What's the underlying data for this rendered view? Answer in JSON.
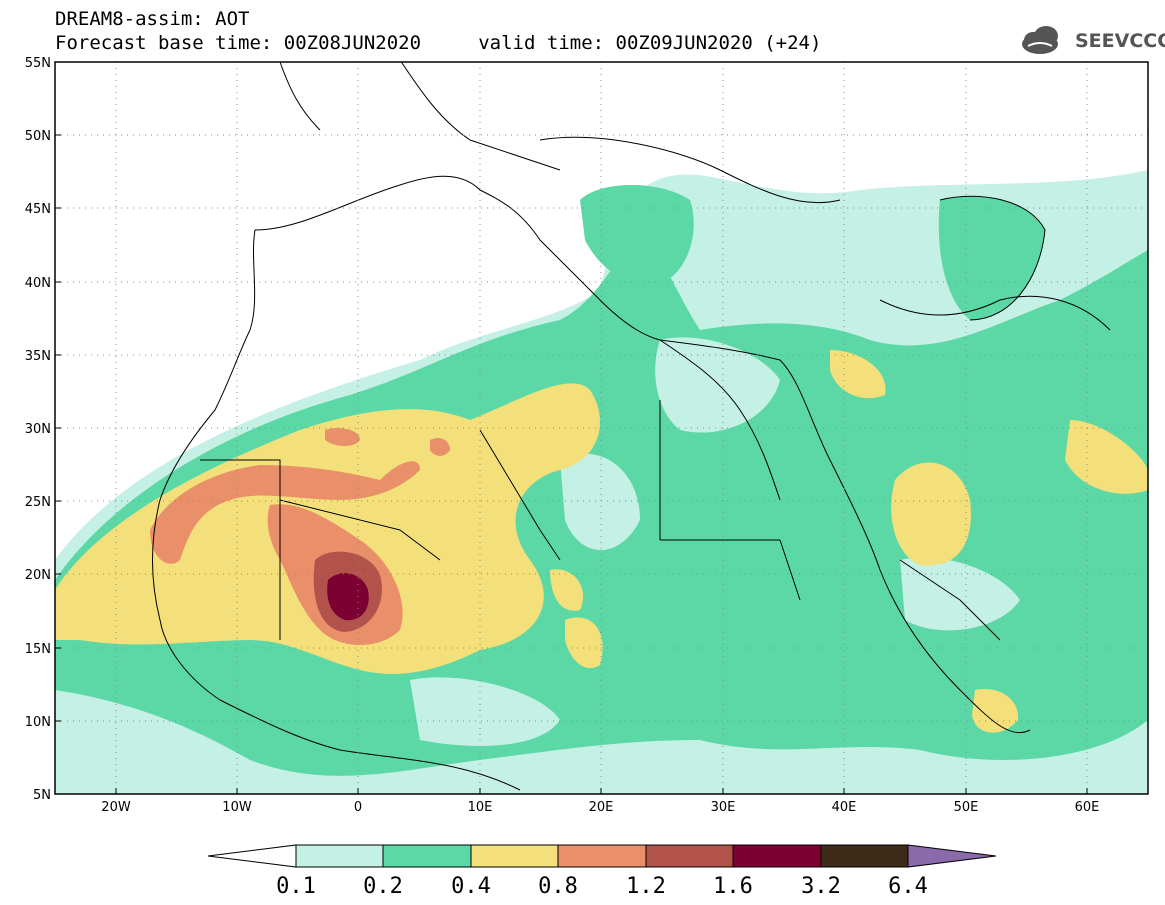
{
  "header": {
    "line1": "DREAM8-assim: AOT",
    "line2": "Forecast base time: 00Z08JUN2020     valid time: 00Z09JUN2020 (+24)"
  },
  "logo": {
    "text": "SEEVCCC",
    "icon": "cloud-icon"
  },
  "map": {
    "lat_labels": [
      "55N",
      "50N",
      "45N",
      "40N",
      "35N",
      "30N",
      "25N",
      "20N",
      "15N",
      "10N",
      "5N"
    ],
    "lon_labels": [
      "20W",
      "10W",
      "0",
      "10E",
      "20E",
      "30E",
      "40E",
      "50E",
      "60E"
    ],
    "lat_range": [
      5,
      55
    ],
    "lon_range": [
      -25,
      65
    ],
    "gridlines": "dotted"
  },
  "colorbar": {
    "labels": [
      "0.1",
      "0.2",
      "0.4",
      "0.8",
      "1.2",
      "1.6",
      "3.2",
      "6.4"
    ],
    "colors": [
      "#c5f0e5",
      "#5cd8a6",
      "#f4e07b",
      "#e98f6a",
      "#b1534b",
      "#7d0032",
      "#3d2a17",
      "#8b6aab"
    ]
  }
}
